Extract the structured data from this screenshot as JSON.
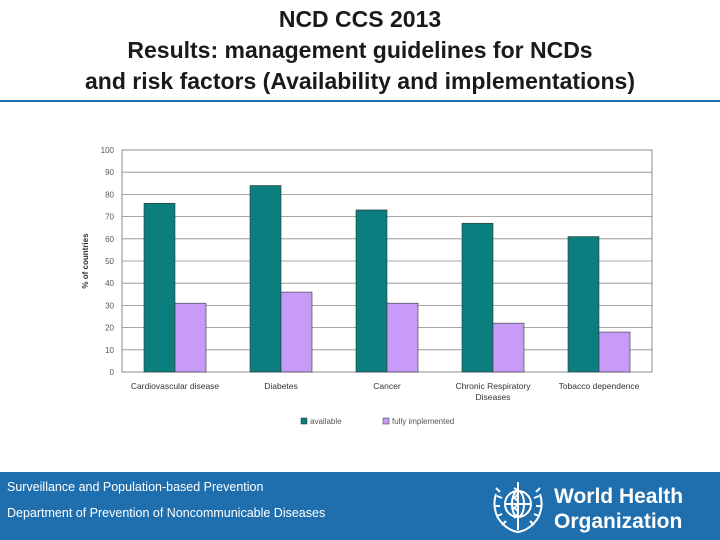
{
  "header": {
    "title_lines": [
      "NCD CCS 2013",
      "Results: management guidelines for NCDs",
      "and risk factors (Availability and implementations)"
    ]
  },
  "chart_data": {
    "type": "bar",
    "title": "",
    "xlabel": "",
    "ylabel": "% of countries",
    "ylim": [
      0,
      100
    ],
    "yticks": [
      "0",
      "10",
      "20",
      "30",
      "40",
      "50",
      "60",
      "70",
      "80",
      "90",
      "100"
    ],
    "categories": [
      [
        "Cardiovascular disease"
      ],
      [
        "Diabetes"
      ],
      [
        "Cancer"
      ],
      [
        "Chronic Respiratory",
        "Diseases"
      ],
      [
        "Tobacco dependence"
      ]
    ],
    "series": [
      {
        "name": "available",
        "color": "#0b7e80",
        "values": [
          76,
          84,
          73,
          67,
          61
        ]
      },
      {
        "name": "fully implemented",
        "color": "#c79bf7",
        "values": [
          31,
          36,
          31,
          22,
          18
        ]
      }
    ],
    "grid": true,
    "legend": "bottom-center"
  },
  "footer": {
    "line1": "Surveillance and Population-based Prevention",
    "line2": "Department of Prevention of Noncommunicable Diseases",
    "logo_text_1": "World Health",
    "logo_text_2": "Organization",
    "bg_color": "#1f6fae"
  }
}
